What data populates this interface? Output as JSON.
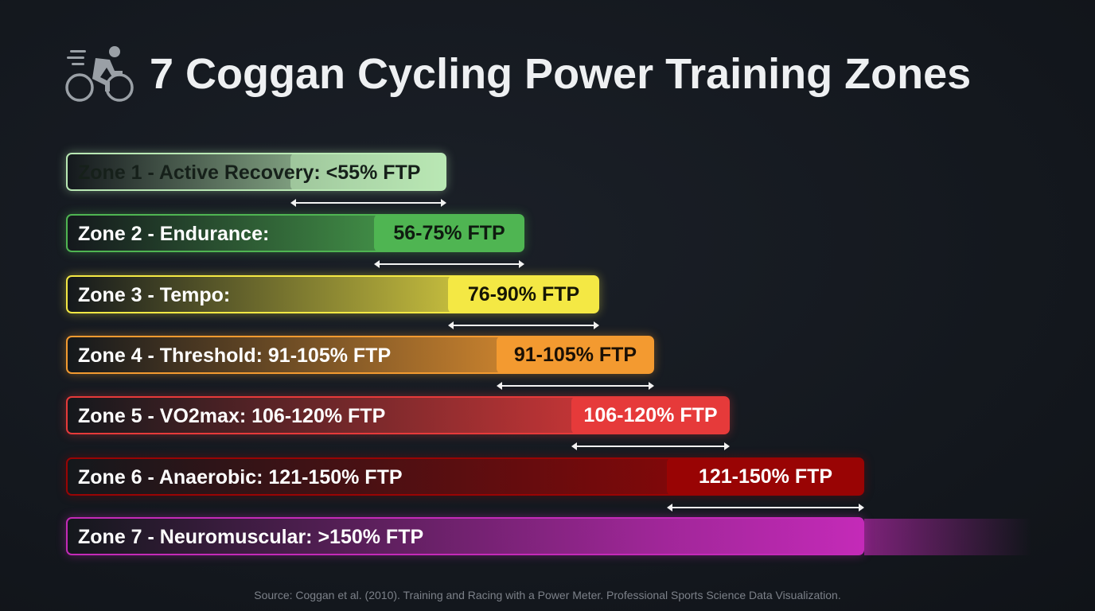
{
  "title": "7 Coggan Cycling Power Training Zones",
  "title_icon": "cyclist-icon",
  "source": "Source: Coggan et al. (2010). Training and Racing with a Power Meter. Professional Sports Science Data Visualization.",
  "chart_data": {
    "type": "bar",
    "orientation": "horizontal",
    "title": "7 Coggan Cycling Power Training Zones",
    "unit": "% FTP",
    "zones": [
      {
        "zone": 1,
        "label": "Zone 1 - Active Recovery: <55% FTP",
        "range_label": "",
        "min": null,
        "max": 55,
        "color": "#b9e8b4",
        "label_color": "#16201a",
        "range_color": "#16201a"
      },
      {
        "zone": 2,
        "label": "Zone 2 - Endurance:",
        "range_label": "56-75% FTP",
        "min": 56,
        "max": 75,
        "color": "#4fb552",
        "label_color": "#ffffff",
        "range_color": "#0f1a10"
      },
      {
        "zone": 3,
        "label": "Zone 3 - Tempo:",
        "range_label": "76-90% FTP",
        "min": 76,
        "max": 90,
        "color": "#f4e844",
        "label_color": "#ffffff",
        "range_color": "#151505"
      },
      {
        "zone": 4,
        "label": "Zone 4 - Threshold: 91-105% FTP",
        "range_label": "91-105% FTP",
        "min": 91,
        "max": 105,
        "color": "#f39a30",
        "label_color": "#ffffff",
        "range_color": "#1a1005"
      },
      {
        "zone": 5,
        "label": "Zone 5 - VO2max: 106-120% FTP",
        "range_label": "106-120% FTP",
        "min": 106,
        "max": 120,
        "color": "#e63a3a",
        "label_color": "#ffffff",
        "range_color": "#ffffff"
      },
      {
        "zone": 6,
        "label": "Zone 6 - Anaerobic: 121-150% FTP",
        "range_label": "121-150% FTP",
        "min": 121,
        "max": 150,
        "color": "#990404",
        "label_color": "#ffffff",
        "range_color": "#ffffff"
      },
      {
        "zone": 7,
        "label": "Zone 7 - Neuromuscular: >150% FTP",
        "range_label": "",
        "min": 150,
        "max": null,
        "color": "#c42ab8",
        "label_color": "#ffffff",
        "range_color": "#ffffff"
      }
    ]
  }
}
